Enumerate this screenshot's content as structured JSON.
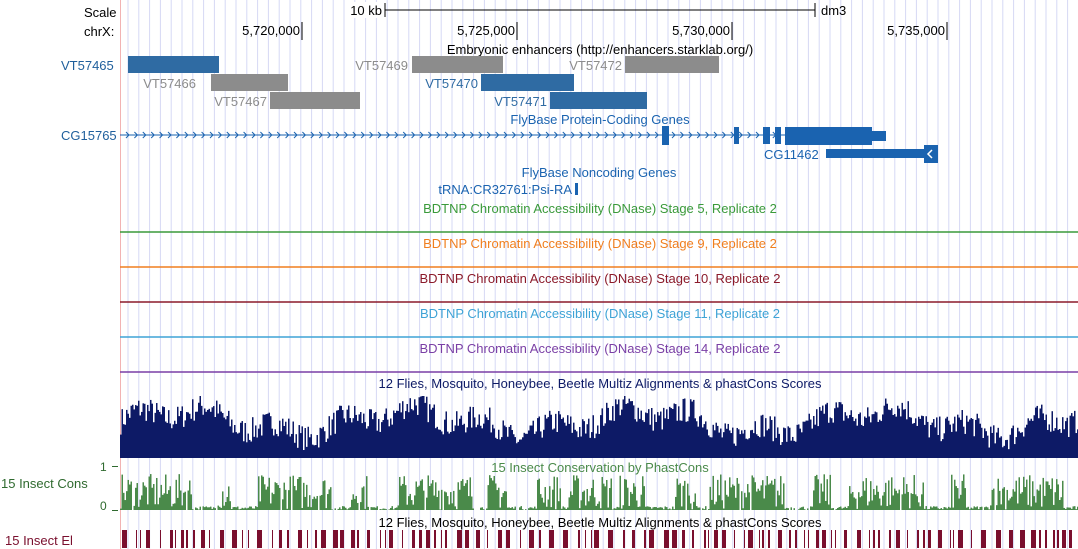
{
  "ruler": {
    "scale_label": "Scale",
    "chrom_label": "chrX:",
    "scale_bar_text": "10 kb",
    "assembly": "dm3",
    "positions": [
      "5,720,000",
      "5,725,000",
      "5,730,000",
      "5,735,000"
    ]
  },
  "enhancers": {
    "track_title": "Embryonic enhancers (http://enhancers.starklab.org/)",
    "side_label": "VT57465",
    "items": [
      {
        "name": "VT57465",
        "color": "#2f6ba3",
        "label_visible": false
      },
      {
        "name": "VT57466",
        "color": "#8c8c8c",
        "label_visible": true
      },
      {
        "name": "VT57467",
        "color": "#8c8c8c",
        "label_visible": true
      },
      {
        "name": "VT57469",
        "color": "#8c8c8c",
        "label_visible": true
      },
      {
        "name": "VT57470",
        "color": "#2f6ba3",
        "label_visible": true
      },
      {
        "name": "VT57471",
        "color": "#2f6ba3",
        "label_visible": true
      },
      {
        "name": "VT57472",
        "color": "#8c8c8c",
        "label_visible": true
      }
    ]
  },
  "genes": {
    "track_title": "FlyBase Protein-Coding Genes",
    "side_label": "CG15765",
    "second_gene": "CG11462",
    "color": "#1a63b0"
  },
  "noncoding": {
    "track_title": "FlyBase Noncoding Genes",
    "item": "tRNA:CR32761:Psi-RA"
  },
  "dnase_tracks": [
    {
      "title": "BDTNP Chromatin Accessibility (DNase) Stage 5, Replicate 2",
      "color": "#3a9a3a"
    },
    {
      "title": "BDTNP Chromatin Accessibility (DNase) Stage 9, Replicate 2",
      "color": "#f07e1e"
    },
    {
      "title": "BDTNP Chromatin Accessibility (DNase) Stage 10, Replicate 2",
      "color": "#8b1a2a"
    },
    {
      "title": "BDTNP Chromatin Accessibility (DNase) Stage 11, Replicate 2",
      "color": "#3ea3d6"
    },
    {
      "title": "BDTNP Chromatin Accessibility (DNase) Stage 14, Replicate 2",
      "color": "#7a3fa5"
    }
  ],
  "multiz": {
    "track_title": "12 Flies, Mosquito, Honeybee, Beetle Multiz Alignments & phastCons Scores",
    "color": "#0d1a66"
  },
  "cons": {
    "track_title": "15 Insect Conservation by PhastCons",
    "side_label": "15 Insect Cons",
    "axis_max": "1",
    "axis_min": "0",
    "color": "#4a8a4a"
  },
  "elements": {
    "track_title": "12 Flies, Mosquito, Honeybee, Beetle Multiz Alignments & phastCons Scores",
    "side_label": "15 Insect El",
    "color": "#7a0f2e"
  }
}
